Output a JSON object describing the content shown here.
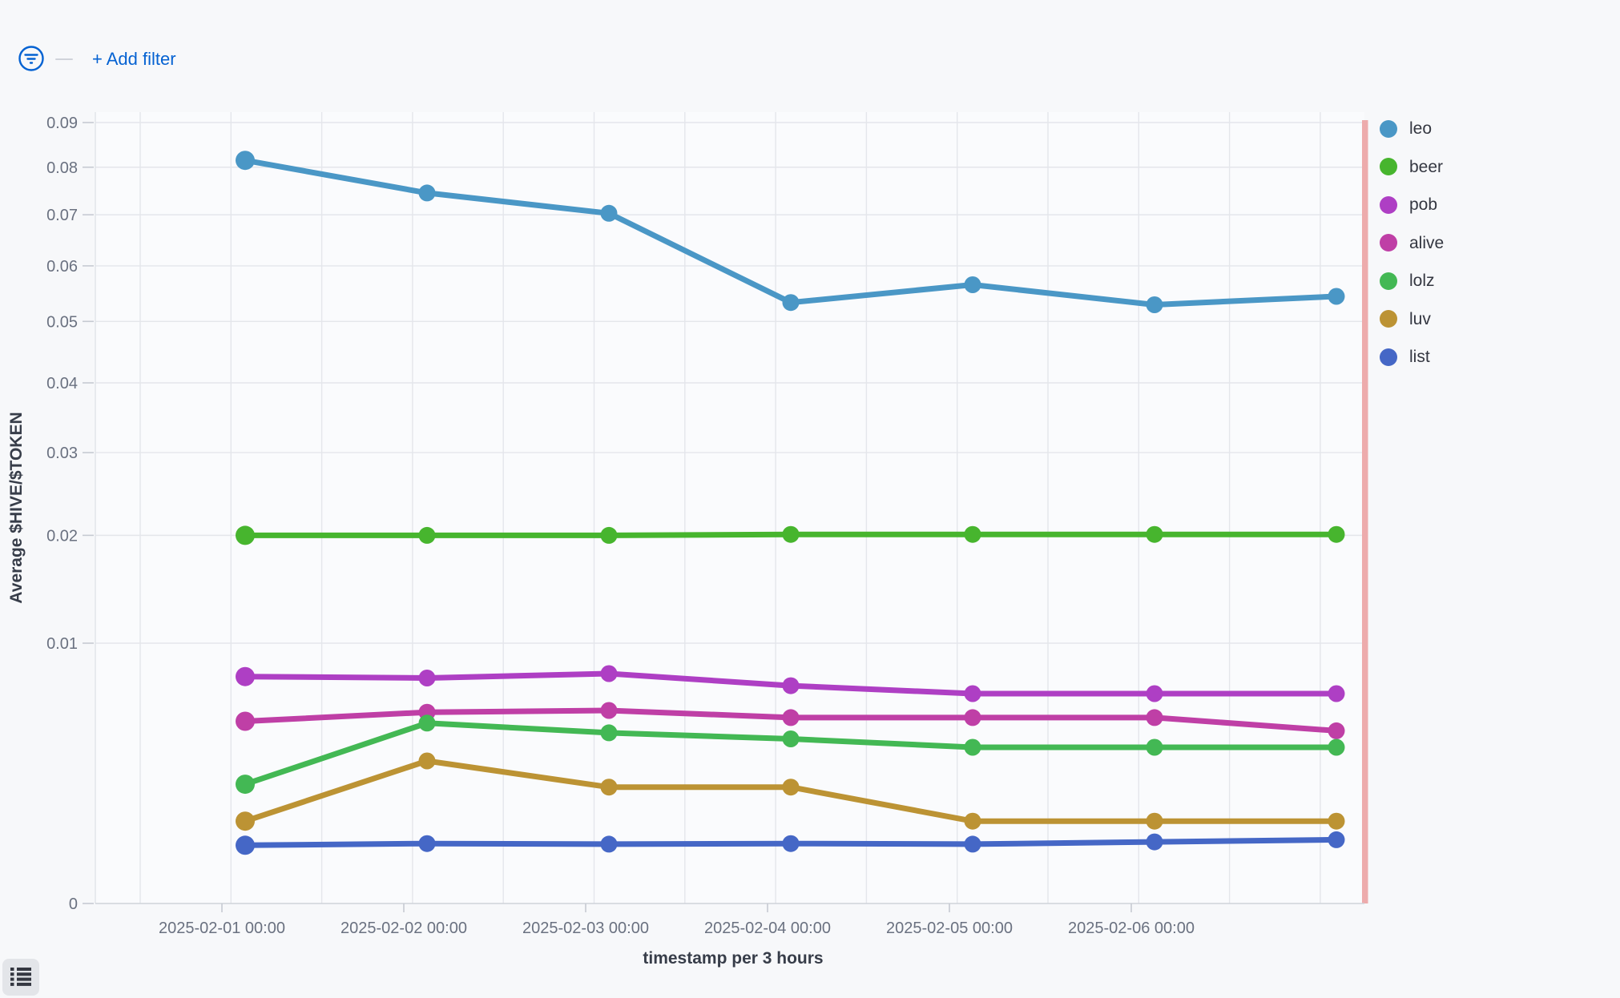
{
  "filter_bar": {
    "add_filter_label": "+ Add filter",
    "accent_color": "#0562d2"
  },
  "chart_data": {
    "type": "line",
    "title": "",
    "xlabel": "timestamp per 3 hours",
    "ylabel": "Average $HIVE/$TOKEN",
    "y_scale": "sqrt",
    "ylim": [
      0,
      0.09
    ],
    "y_ticks": [
      0,
      0.01,
      0.02,
      0.03,
      0.04,
      0.05,
      0.06,
      0.07,
      0.08,
      0.09
    ],
    "grid": true,
    "legend_position": "right",
    "x_tick_labels": [
      "2025-02-01 00:00",
      "2025-02-02 00:00",
      "2025-02-03 00:00",
      "2025-02-04 00:00",
      "2025-02-05 00:00",
      "2025-02-06 00:00"
    ],
    "x": [
      "2025-02-01",
      "2025-02-02",
      "2025-02-03",
      "2025-02-04",
      "2025-02-05",
      "2025-02-06",
      "2025-02-07"
    ],
    "series": [
      {
        "name": "leo",
        "color": "#4a97c6",
        "values": [
          0.0815,
          0.0745,
          0.0703,
          0.0533,
          0.0565,
          0.0529,
          0.0544
        ]
      },
      {
        "name": "beer",
        "color": "#47b52e",
        "values": [
          0.02,
          0.02,
          0.02,
          0.0201,
          0.0201,
          0.0201,
          0.0201
        ]
      },
      {
        "name": "pob",
        "color": "#ae3fc4",
        "values": [
          0.0076,
          0.0075,
          0.0078,
          0.007,
          0.0065,
          0.0065,
          0.0065
        ]
      },
      {
        "name": "alive",
        "color": "#bf3fa6",
        "values": [
          0.0049,
          0.0054,
          0.0055,
          0.0051,
          0.0051,
          0.0051,
          0.0044
        ]
      },
      {
        "name": "lolz",
        "color": "#43b854",
        "values": [
          0.0021,
          0.0048,
          0.0043,
          0.004,
          0.0036,
          0.0036,
          0.0036
        ]
      },
      {
        "name": "luv",
        "color": "#bc9334",
        "values": [
          0.001,
          0.003,
          0.002,
          0.002,
          0.001,
          0.001,
          0.001
        ]
      },
      {
        "name": "list",
        "color": "#4567c6",
        "values": [
          0.0005,
          0.00053,
          0.00052,
          0.00053,
          0.00052,
          0.00056,
          0.0006
        ]
      }
    ],
    "annotation": {
      "type": "vertical-band",
      "position": "right-edge",
      "color": "#edabac"
    }
  }
}
